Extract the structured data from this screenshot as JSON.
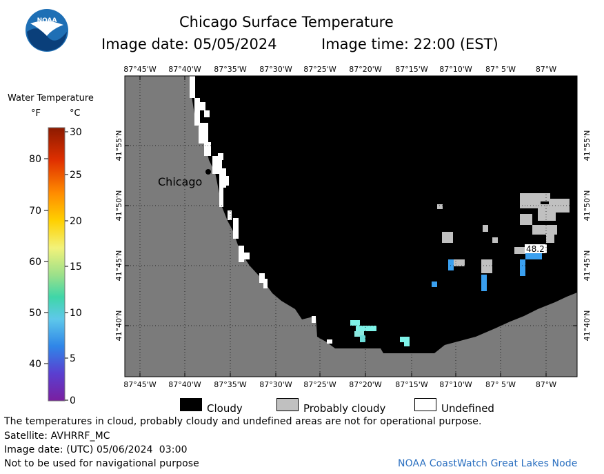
{
  "header": {
    "title": "Chicago Surface Temperature",
    "image_date": "Image date: 05/05/2024",
    "image_time": "Image time: 22:00 (EST)"
  },
  "colorbar": {
    "title": "Water Temperature",
    "unit_f": "°F",
    "unit_c": "°C",
    "f_ticks": [
      "80",
      "70",
      "60",
      "50",
      "40"
    ],
    "c_ticks": [
      "30",
      "25",
      "20",
      "15",
      "10",
      "5",
      "0"
    ]
  },
  "map": {
    "lon_labels": [
      "87°45'W",
      "87°40'W",
      "87°35'W",
      "87°30'W",
      "87°25'W",
      "87°20'W",
      "87°15'W",
      "87°10'W",
      "87° 5'W",
      "87°W"
    ],
    "lat_labels": [
      "41°55'N",
      "41°50'N",
      "41°45'N",
      "41°40'N"
    ],
    "city_label": "Chicago",
    "temp_label": "48.2",
    "colors": {
      "land": "#7b7b7b",
      "cloudy": "#000000",
      "probably_cloudy": "#c0c0c0",
      "undefined": "#ffffff"
    }
  },
  "legend": {
    "cloudy": "Cloudy",
    "probably_cloudy": "Probably cloudy",
    "undefined": "Undefined"
  },
  "footer": {
    "disclaimer": "The temperatures in cloud, probably cloudy and undefined areas are not for operational purpose.",
    "satellite": "Satellite: AVHRRF_MC",
    "utc_date": "Image date: (UTC) 05/06/2024  03:00",
    "nav_warning": "Not to be used for navigational purpose",
    "credit": "NOAA CoastWatch Great Lakes Node"
  },
  "logo": {
    "text": "NOAA"
  }
}
